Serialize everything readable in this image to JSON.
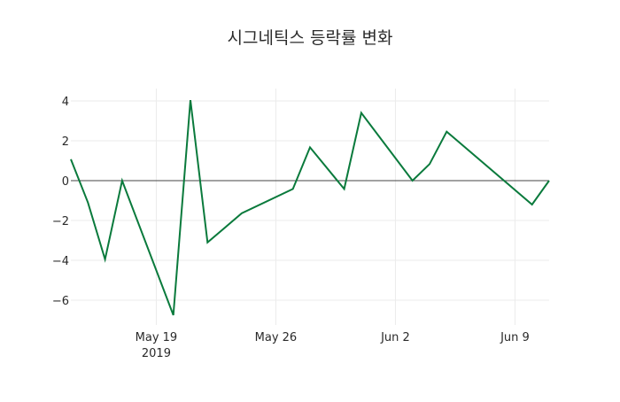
{
  "chart_data": {
    "type": "line",
    "title": "시그네틱스 등락률 변화",
    "xlabel": "",
    "ylabel": "",
    "x": [
      "2019-05-14",
      "2019-05-15",
      "2019-05-16",
      "2019-05-17",
      "2019-05-20",
      "2019-05-21",
      "2019-05-22",
      "2019-05-24",
      "2019-05-27",
      "2019-05-28",
      "2019-05-30",
      "2019-05-31",
      "2019-06-03",
      "2019-06-04",
      "2019-06-05",
      "2019-06-10",
      "2019-06-11"
    ],
    "series": [
      {
        "name": "등락률",
        "color": "#0a7a3c",
        "values": [
          1.07,
          -1.1,
          -3.95,
          0.0,
          -6.75,
          4.04,
          -3.1,
          -1.64,
          -0.42,
          1.67,
          -0.42,
          3.4,
          0.0,
          0.83,
          2.46,
          -1.2,
          0.0
        ]
      }
    ],
    "ylim": [
      -7.3,
      4.6
    ],
    "y_ticks": [
      4,
      2,
      0,
      -2,
      -4,
      -6
    ],
    "y_tick_labels": [
      "4",
      "2",
      "0",
      "−2",
      "−4",
      "−6"
    ],
    "x_ticks": [
      {
        "date": "2019-05-19",
        "label": "May 19",
        "sublabel": "2019"
      },
      {
        "date": "2019-05-26",
        "label": "May 26",
        "sublabel": ""
      },
      {
        "date": "2019-06-02",
        "label": "Jun 2",
        "sublabel": ""
      },
      {
        "date": "2019-06-09",
        "label": "Jun 9",
        "sublabel": ""
      }
    ],
    "grid": true,
    "zero_line": true,
    "legend": "none"
  },
  "colors": {
    "line": "#0a7a3c",
    "grid": "#ebebeb",
    "zero_line": "#444444",
    "text": "#2a2a2a"
  }
}
